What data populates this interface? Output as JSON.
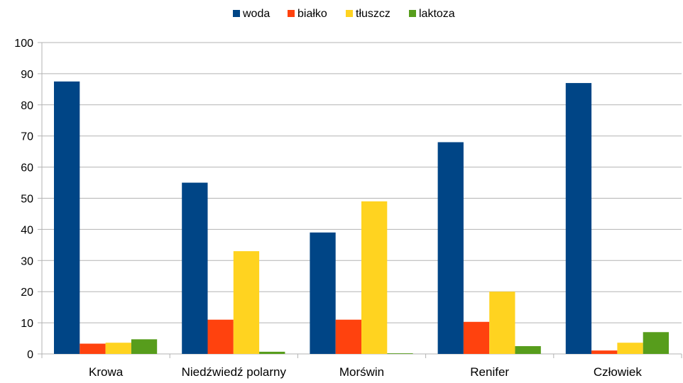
{
  "chart_data": {
    "type": "bar",
    "categories": [
      "Krowa",
      "Niedźwiedź polarny",
      "Morświn",
      "Renifer",
      "Człowiek"
    ],
    "series": [
      {
        "name": "woda",
        "color": "#004586",
        "values": [
          87.5,
          55,
          39,
          68,
          87
        ]
      },
      {
        "name": "białko",
        "color": "#ff420e",
        "values": [
          3.3,
          11,
          11,
          10.3,
          1.1
        ]
      },
      {
        "name": "tłuszcz",
        "color": "#ffd320",
        "values": [
          3.6,
          33,
          49,
          20,
          3.6
        ]
      },
      {
        "name": "laktoza",
        "color": "#579d1c",
        "values": [
          4.7,
          0.7,
          0.2,
          2.5,
          7
        ]
      }
    ],
    "ylim": [
      0,
      100
    ],
    "yticks": [
      0,
      10,
      20,
      30,
      40,
      50,
      60,
      70,
      80,
      90,
      100
    ],
    "grid": true,
    "legend_position": "top-center"
  }
}
